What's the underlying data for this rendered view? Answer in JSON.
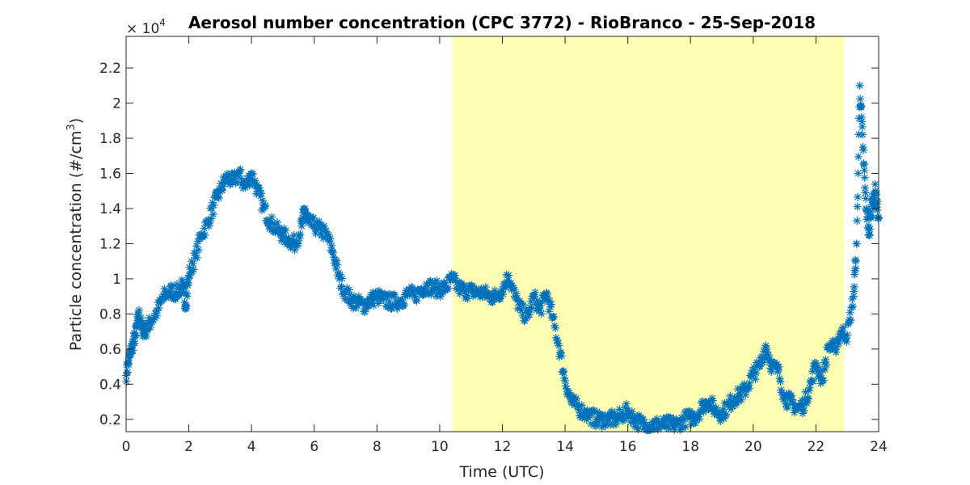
{
  "chart_data": {
    "type": "scatter",
    "title": "Aerosol number concentration (CPC 3772) - RioBranco - 25-Sep-2018",
    "xlabel": "Time (UTC)",
    "ylabel_main": "Particle concentration (#/cm",
    "ylabel_sup": "3",
    "ylabel_close": ")",
    "exponent_base": "× 10",
    "exponent_power": "4",
    "xlim": [
      0,
      24
    ],
    "ylim": [
      0.13,
      2.38
    ],
    "xticks": [
      0,
      2,
      4,
      6,
      8,
      10,
      12,
      14,
      16,
      18,
      20,
      22,
      24
    ],
    "yticks": [
      0.2,
      0.4,
      0.6,
      0.8,
      1,
      1.2,
      1.4,
      1.6,
      1.8,
      2,
      2.2
    ],
    "ytick_labels": [
      "0.2",
      "0.4",
      "0.6",
      "0.8",
      "1",
      "1.2",
      "1.4",
      "1.6",
      "1.8",
      "2",
      "2.2"
    ],
    "marker": "asterisk",
    "series_color": "#0072BD",
    "shaded_region": {
      "x_start": 10.4,
      "x_end": 22.9,
      "color": "#FFFFB3"
    },
    "series": [
      {
        "x": [
          0,
          0.1,
          0.2,
          0.3,
          0.4,
          0.5,
          0.6,
          0.8,
          1.0,
          1.2,
          1.4,
          1.6,
          1.8,
          1.9,
          2.0,
          2.2,
          2.4,
          2.6,
          2.8,
          3.0,
          3.2,
          3.4,
          3.6,
          3.8,
          4.0,
          4.2,
          4.4,
          4.6,
          4.8,
          5.0,
          5.2,
          5.4,
          5.6,
          5.7,
          5.8,
          6.0,
          6.2,
          6.4,
          6.6,
          6.8,
          7.0,
          7.2,
          7.4,
          7.6,
          7.8,
          8.0,
          8.2,
          8.4,
          8.6,
          8.8,
          9.0,
          9.2,
          9.4,
          9.6,
          9.8,
          10.0,
          10.2,
          10.4,
          10.6,
          10.8,
          11.0,
          11.2,
          11.4,
          11.6,
          11.8,
          12.0,
          12.2,
          12.4,
          12.6,
          12.8,
          13.0,
          13.2,
          13.4,
          13.6,
          13.8,
          14.0,
          14.2,
          14.4,
          14.6,
          14.8,
          15.0,
          15.2,
          15.4,
          15.6,
          15.8,
          16.0,
          16.2,
          16.4,
          16.6,
          16.8,
          17.0,
          17.2,
          17.4,
          17.6,
          17.8,
          18.0,
          18.2,
          18.4,
          18.6,
          18.8,
          19.0,
          19.2,
          19.4,
          19.6,
          19.8,
          20.0,
          20.2,
          20.4,
          20.6,
          20.8,
          21.0,
          21.2,
          21.4,
          21.6,
          21.8,
          22.0,
          22.2,
          22.4,
          22.6,
          22.8,
          23.0,
          23.2,
          23.3,
          23.4,
          23.5,
          23.6,
          23.7,
          23.8,
          23.9,
          24.0
        ],
        "y": [
          0.45,
          0.55,
          0.62,
          0.68,
          0.8,
          0.72,
          0.7,
          0.76,
          0.82,
          0.9,
          0.93,
          0.92,
          0.96,
          0.85,
          1.02,
          1.12,
          1.25,
          1.32,
          1.42,
          1.5,
          1.58,
          1.55,
          1.6,
          1.52,
          1.6,
          1.5,
          1.4,
          1.32,
          1.28,
          1.25,
          1.22,
          1.2,
          1.3,
          1.4,
          1.32,
          1.3,
          1.28,
          1.25,
          1.15,
          1.0,
          0.92,
          0.88,
          0.86,
          0.85,
          0.88,
          0.9,
          0.88,
          0.87,
          0.87,
          0.88,
          0.92,
          0.9,
          0.94,
          0.96,
          0.95,
          0.94,
          0.95,
          1.0,
          0.95,
          0.93,
          0.93,
          0.92,
          0.92,
          0.9,
          0.9,
          0.94,
          1.02,
          0.9,
          0.82,
          0.78,
          0.9,
          0.82,
          0.92,
          0.78,
          0.62,
          0.42,
          0.3,
          0.27,
          0.24,
          0.22,
          0.2,
          0.2,
          0.2,
          0.2,
          0.22,
          0.25,
          0.2,
          0.18,
          0.16,
          0.17,
          0.17,
          0.17,
          0.17,
          0.17,
          0.2,
          0.21,
          0.22,
          0.28,
          0.3,
          0.25,
          0.23,
          0.28,
          0.32,
          0.34,
          0.38,
          0.46,
          0.5,
          0.62,
          0.5,
          0.48,
          0.32,
          0.3,
          0.26,
          0.28,
          0.38,
          0.52,
          0.42,
          0.62,
          0.6,
          0.7,
          0.68,
          0.9,
          1.2,
          2.1,
          1.75,
          1.4,
          1.25,
          1.45,
          1.5,
          1.35
        ]
      }
    ]
  }
}
